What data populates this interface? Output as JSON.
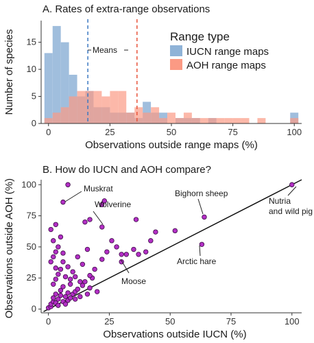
{
  "chart_data": [
    {
      "type": "histogram",
      "title": "A. Rates of extra-range observations",
      "xlabel": "Observations outside range maps (%)",
      "ylabel": "Number of species",
      "xlim": [
        -3,
        103
      ],
      "ylim": [
        0,
        19
      ],
      "xticks": [
        0,
        25,
        50,
        75,
        100
      ],
      "yticks": [
        0,
        5,
        10,
        15
      ],
      "bin_width": 3.33,
      "bin_starts": [
        -1.67,
        1.67,
        5,
        8.33,
        11.67,
        15,
        18.33,
        21.67,
        25,
        28.33,
        31.67,
        35,
        38.33,
        41.67,
        45,
        48.33,
        51.67,
        55,
        58.33,
        61.67,
        65,
        68.33,
        71.67,
        75,
        78.33,
        81.67,
        85,
        88.33,
        91.67,
        95,
        98.33
      ],
      "legend_title": "Range type",
      "legend_position": "top-right",
      "series": [
        {
          "name": "IUCN range maps",
          "color": "#8fb3d7",
          "values": [
            13,
            18,
            15,
            9,
            5,
            6,
            3,
            3,
            2,
            2,
            2,
            1,
            4,
            2,
            2,
            0,
            1,
            1,
            1,
            0,
            1,
            0,
            0,
            0,
            0,
            0,
            0,
            0,
            0,
            0,
            2
          ]
        },
        {
          "name": "AOH range maps",
          "color": "#fb9a84",
          "values": [
            1,
            2,
            3,
            5,
            6,
            6,
            6,
            5,
            6,
            6,
            2,
            3,
            2,
            3,
            1,
            2,
            1,
            2,
            1,
            1,
            1,
            1,
            1,
            1,
            1,
            0,
            1,
            0,
            0,
            0,
            1
          ]
        }
      ],
      "mean_lines": [
        {
          "label": "IUCN range maps",
          "value": 16,
          "color": "#3a78c2"
        },
        {
          "label": "AOH range maps",
          "value": 36,
          "color": "#e8533a"
        }
      ],
      "annotation": "Means"
    },
    {
      "type": "scatter",
      "title": "B. How do IUCN and AOH compare?",
      "xlabel": "Observations outside IUCN (%)",
      "ylabel": "Observations outside AOH (%)",
      "xlim": [
        -3,
        104
      ],
      "ylim": [
        -3,
        104
      ],
      "xticks": [
        0,
        25,
        50,
        75,
        100
      ],
      "yticks": [
        0,
        25,
        50,
        75,
        100
      ],
      "point_color": "#b22fc4",
      "reference_line": "y = x",
      "points": [
        [
          0,
          1
        ],
        [
          1,
          2
        ],
        [
          1,
          4
        ],
        [
          2,
          6
        ],
        [
          2,
          9
        ],
        [
          3,
          5
        ],
        [
          3,
          12
        ],
        [
          4,
          3
        ],
        [
          4,
          8
        ],
        [
          5,
          11
        ],
        [
          5,
          15
        ],
        [
          6,
          6
        ],
        [
          6,
          18
        ],
        [
          7,
          4
        ],
        [
          7,
          10
        ],
        [
          8,
          7
        ],
        [
          8,
          13
        ],
        [
          9,
          9
        ],
        [
          9,
          20
        ],
        [
          10,
          12
        ],
        [
          11,
          8
        ],
        [
          11,
          14
        ],
        [
          12,
          16
        ],
        [
          13,
          10
        ],
        [
          14,
          19
        ],
        [
          15,
          22
        ],
        [
          16,
          12
        ],
        [
          17,
          17
        ],
        [
          18,
          25
        ],
        [
          20,
          14
        ],
        [
          2,
          20
        ],
        [
          3,
          24
        ],
        [
          4,
          28
        ],
        [
          5,
          32
        ],
        [
          1,
          38
        ],
        [
          2,
          42
        ],
        [
          3,
          46
        ],
        [
          4,
          50
        ],
        [
          2,
          55
        ],
        [
          5,
          58
        ],
        [
          1,
          64
        ],
        [
          3,
          68
        ],
        [
          6,
          38
        ],
        [
          7,
          26
        ],
        [
          8,
          34
        ],
        [
          10,
          30
        ],
        [
          12,
          42
        ],
        [
          14,
          36
        ],
        [
          16,
          48
        ],
        [
          17,
          27
        ],
        [
          19,
          32
        ],
        [
          22,
          40
        ],
        [
          24,
          46
        ],
        [
          26,
          55
        ],
        [
          28,
          50
        ],
        [
          30,
          38
        ],
        [
          32,
          44
        ],
        [
          35,
          48
        ],
        [
          37,
          44
        ],
        [
          40,
          46
        ],
        [
          42,
          55
        ],
        [
          44,
          62
        ],
        [
          52,
          63
        ],
        [
          36,
          72
        ],
        [
          22,
          66
        ],
        [
          15,
          70
        ],
        [
          17,
          72
        ],
        [
          22,
          84
        ],
        [
          23,
          87
        ],
        [
          30,
          44
        ],
        [
          6,
          86
        ],
        [
          8,
          100
        ],
        [
          64,
          74
        ],
        [
          63,
          52
        ],
        [
          100,
          100
        ],
        [
          9,
          24
        ],
        [
          6,
          45
        ],
        [
          3,
          33
        ],
        [
          11,
          26
        ],
        [
          13,
          22
        ]
      ],
      "labels": [
        {
          "text": "Muskrat"
        },
        {
          "text": "Wolverine"
        },
        {
          "text": "Bighorn sheep"
        },
        {
          "text": "Nutria and wild pig"
        },
        {
          "text": "Arctic hare"
        },
        {
          "text": "Moose"
        }
      ]
    }
  ]
}
